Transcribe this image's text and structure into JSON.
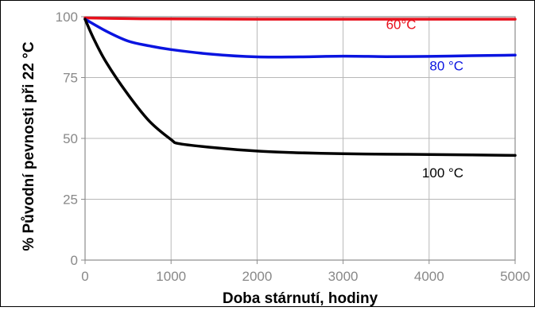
{
  "chart_data": {
    "type": "line",
    "xlabel": "Doba stárnutí, hodiny",
    "ylabel": "% Původní pevnosti při 22 °C",
    "xlim": [
      0,
      5000
    ],
    "ylim": [
      0,
      100
    ],
    "x_ticks": [
      "0",
      "1000",
      "2000",
      "3000",
      "4000",
      "5000"
    ],
    "y_ticks": [
      "0",
      "25",
      "50",
      "75",
      "100"
    ],
    "grid": true,
    "legend": "inline labels",
    "series": [
      {
        "name": "60°C",
        "color": "#e8101c",
        "x": [
          0,
          500,
          1000,
          2000,
          3000,
          4000,
          5000
        ],
        "y": [
          99.5,
          99.2,
          99.1,
          99.0,
          99.0,
          99.0,
          99.0
        ]
      },
      {
        "name": "80 °C",
        "color": "#0a14e0",
        "x": [
          0,
          250,
          500,
          750,
          1000,
          1500,
          2000,
          2500,
          3000,
          3500,
          4000,
          4500,
          5000
        ],
        "y": [
          99,
          94,
          90,
          88,
          86.5,
          84.5,
          83.5,
          83.5,
          83.8,
          83.6,
          83.7,
          84,
          84.2
        ]
      },
      {
        "name": "100 °C",
        "color": "#000000",
        "x": [
          0,
          100,
          250,
          500,
          750,
          1000,
          1100,
          1500,
          2000,
          2500,
          3000,
          3500,
          4000,
          4500,
          5000
        ],
        "y": [
          99,
          91,
          81,
          68,
          57,
          49.5,
          47.8,
          46.2,
          44.8,
          44.1,
          43.7,
          43.5,
          43.4,
          43.2,
          43.0
        ]
      }
    ]
  }
}
